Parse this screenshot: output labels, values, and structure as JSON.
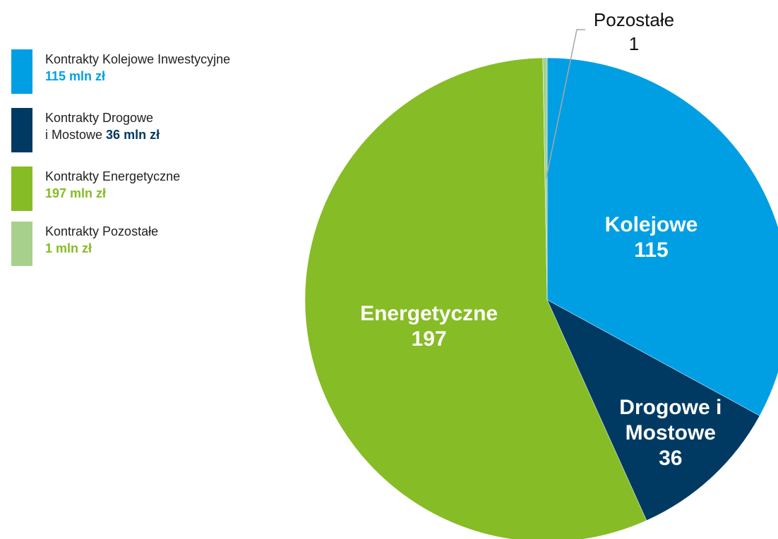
{
  "chart_data": {
    "type": "pie",
    "categories": [
      "Kolejowe",
      "Drogowe i Mostowe",
      "Energetyczne",
      "Pozostałe"
    ],
    "values": [
      115,
      36,
      197,
      1
    ],
    "colors": [
      "#009fe3",
      "#003a63",
      "#86bc25",
      "#a8d08d"
    ],
    "legend": [
      [
        "Kontrakty Kolejowe Inwestycyjne"
      ],
      [
        "Kontrakty Drogowe",
        "i Mostowe"
      ],
      [
        "Kontrakty Energetyczne"
      ],
      [
        "Kontrakty Pozostałe"
      ]
    ],
    "value_labels": [
      "115 mln zł",
      "36 mln zł",
      "197 mln zł",
      "1 mln zł"
    ],
    "value_label_colors": [
      "#009fe3",
      "#003a63",
      "#86bc25",
      "#86bc25"
    ]
  }
}
